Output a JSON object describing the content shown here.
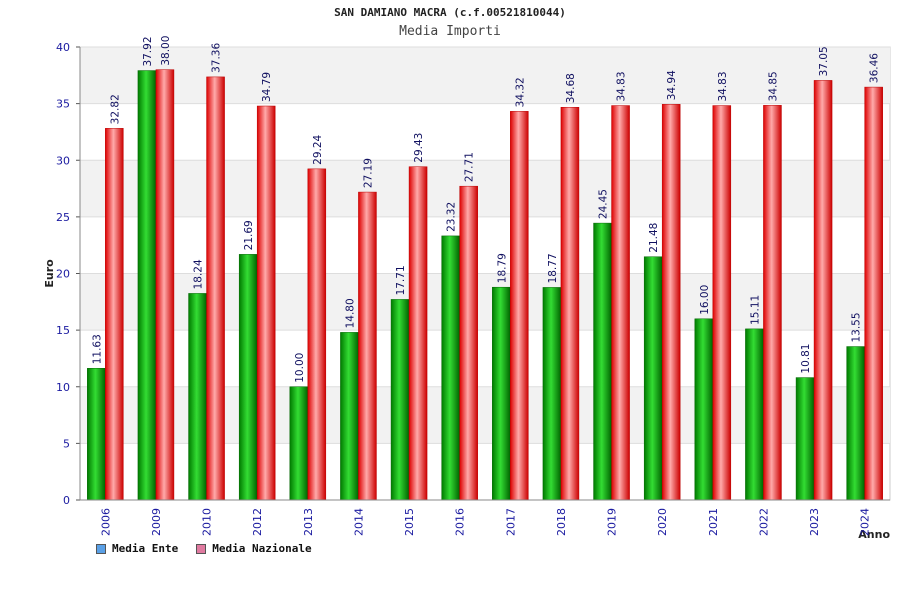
{
  "chart_data": {
    "type": "bar",
    "title": "SAN DAMIANO MACRA (c.f.00521810044)",
    "subtitle": "Media Importi",
    "xlabel": "Anno",
    "ylabel": "Euro",
    "ylim": [
      0,
      40
    ],
    "yticks": [
      "0",
      "5",
      "10",
      "15",
      "20",
      "25",
      "30",
      "35",
      "40"
    ],
    "categories": [
      "2006",
      "2009",
      "2010",
      "2012",
      "2013",
      "2014",
      "2015",
      "2016",
      "2017",
      "2018",
      "2019",
      "2020",
      "2021",
      "2022",
      "2023",
      "2024"
    ],
    "series": [
      {
        "name": "Media Ente",
        "color": "#00aa00",
        "values": [
          11.63,
          37.92,
          18.24,
          21.69,
          10.0,
          14.8,
          17.71,
          23.32,
          18.79,
          18.77,
          24.45,
          21.48,
          16.0,
          15.11,
          10.81,
          13.55
        ],
        "labels": [
          "11.63",
          "37.92",
          "18.24",
          "21.69",
          "10.00",
          "14.80",
          "17.71",
          "23.32",
          "18.79",
          "18.77",
          "24.45",
          "21.48",
          "16.00",
          "15.11",
          "10.81",
          "13.55"
        ]
      },
      {
        "name": "Media Nazionale",
        "color": "#ee2222",
        "values": [
          32.82,
          38.0,
          37.36,
          34.79,
          29.24,
          27.19,
          29.43,
          27.71,
          34.32,
          34.68,
          34.83,
          34.94,
          34.83,
          34.85,
          37.05,
          36.46
        ],
        "labels": [
          "32.82",
          "38.00",
          "37.36",
          "34.79",
          "29.24",
          "27.19",
          "29.43",
          "27.71",
          "34.32",
          "34.68",
          "34.83",
          "34.94",
          "34.83",
          "34.85",
          "37.05",
          "36.46"
        ]
      }
    ],
    "grid": true,
    "legend_position": "bottom-left"
  },
  "legend": {
    "items": [
      {
        "label": "Media Ente",
        "color": "#5aa0e6"
      },
      {
        "label": "Media Nazionale",
        "color": "#e07aa0"
      }
    ]
  }
}
